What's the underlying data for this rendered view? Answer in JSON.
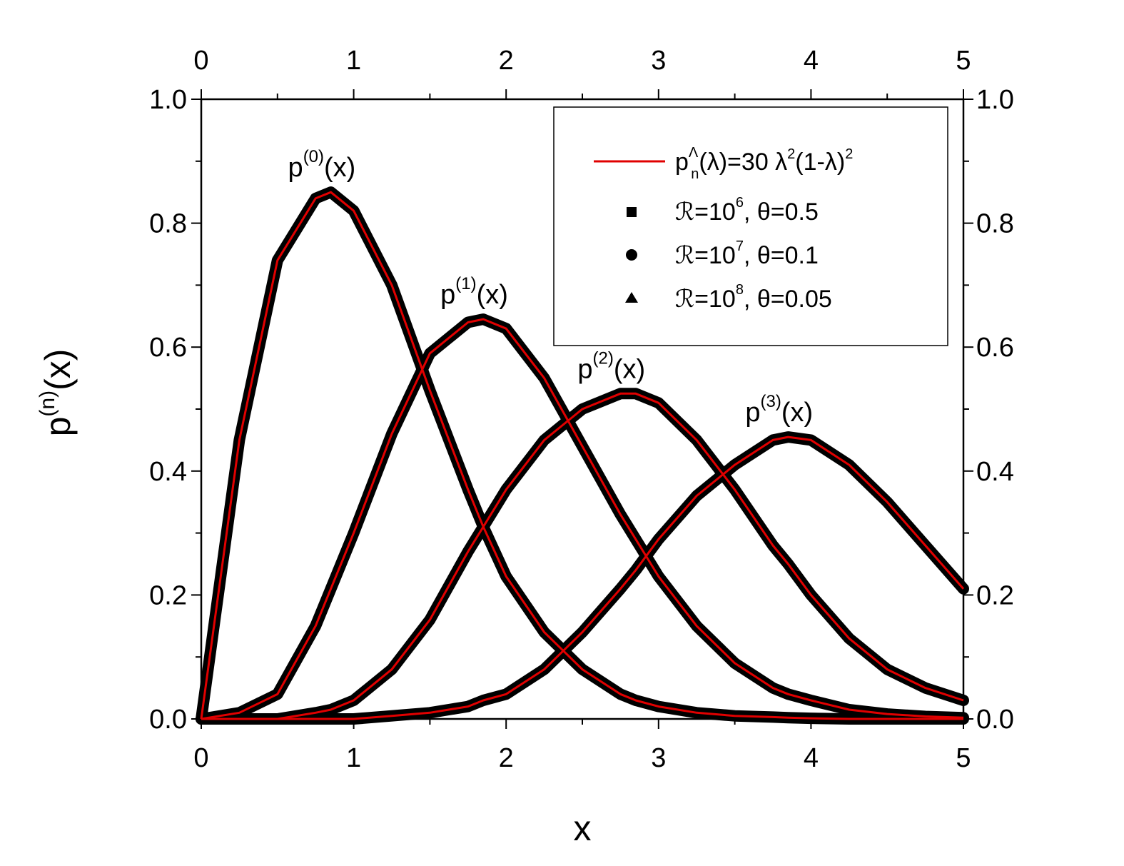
{
  "chart_data": {
    "type": "line",
    "xlabel": "x",
    "ylabel": "p(n)(x)",
    "ylabel_parts": {
      "base": "p",
      "sup": "(n)",
      "tail": "(x)"
    },
    "xlim": [
      0,
      5
    ],
    "ylim": [
      0,
      1.0
    ],
    "x_ticks": [
      "0",
      "1",
      "2",
      "3",
      "4",
      "5"
    ],
    "y_ticks": [
      "0.0",
      "0.2",
      "0.4",
      "0.6",
      "0.8",
      "1.0"
    ],
    "top_axis_mirrored": true,
    "right_axis_mirrored": true,
    "grid": false,
    "legend_position": "top-right",
    "legend": [
      {
        "kind": "line",
        "color": "#e00000",
        "base": "p",
        "sup": "Λ",
        "sub": "n",
        "mid": "(λ)=30 λ",
        "sup2": "2",
        "mid2": "(1-λ)",
        "sup3": "2"
      },
      {
        "kind": "square",
        "prefix": "ℛ=10",
        "sup": "6",
        "suffix": ", θ=0.5"
      },
      {
        "kind": "circle",
        "prefix": "ℛ=10",
        "sup": "7",
        "suffix": ", θ=0.1"
      },
      {
        "kind": "triangle",
        "prefix": "ℛ=10",
        "sup": "8",
        "suffix": ", θ=0.05"
      }
    ],
    "annotations": [
      {
        "base": "p",
        "sup": "(0)",
        "tail": "(x)"
      },
      {
        "base": "p",
        "sup": "(1)",
        "tail": "(x)"
      },
      {
        "base": "p",
        "sup": "(2)",
        "tail": "(x)"
      },
      {
        "base": "p",
        "sup": "(3)",
        "tail": "(x)"
      }
    ],
    "x": [
      0.0,
      0.25,
      0.5,
      0.75,
      0.85,
      1.0,
      1.25,
      1.5,
      1.75,
      1.85,
      2.0,
      2.25,
      2.5,
      2.75,
      2.85,
      3.0,
      3.25,
      3.5,
      3.75,
      3.85,
      4.0,
      4.25,
      4.5,
      4.75,
      5.0
    ],
    "series": [
      {
        "name": "p(0)(x)",
        "color": "#e00000",
        "values": [
          0.0,
          0.45,
          0.74,
          0.84,
          0.85,
          0.82,
          0.7,
          0.53,
          0.37,
          0.31,
          0.23,
          0.14,
          0.08,
          0.04,
          0.03,
          0.02,
          0.01,
          0.005,
          0.003,
          0.002,
          0.001,
          0.0,
          0.0,
          0.0,
          0.0
        ]
      },
      {
        "name": "p(1)(x)",
        "color": "#e00000",
        "values": [
          0.0,
          0.01,
          0.04,
          0.15,
          0.21,
          0.3,
          0.46,
          0.59,
          0.64,
          0.645,
          0.63,
          0.55,
          0.44,
          0.33,
          0.29,
          0.23,
          0.15,
          0.09,
          0.05,
          0.04,
          0.03,
          0.015,
          0.008,
          0.004,
          0.002
        ]
      },
      {
        "name": "p(2)(x)",
        "color": "#e00000",
        "values": [
          0.0,
          0.0,
          0.0,
          0.01,
          0.015,
          0.03,
          0.08,
          0.16,
          0.27,
          0.31,
          0.37,
          0.45,
          0.5,
          0.525,
          0.525,
          0.51,
          0.45,
          0.37,
          0.28,
          0.25,
          0.2,
          0.13,
          0.08,
          0.05,
          0.03
        ]
      },
      {
        "name": "p(3)(x)",
        "color": "#e00000",
        "values": [
          0.0,
          0.0,
          0.0,
          0.0,
          0.0,
          0.0,
          0.005,
          0.01,
          0.02,
          0.03,
          0.04,
          0.08,
          0.14,
          0.21,
          0.24,
          0.29,
          0.36,
          0.41,
          0.45,
          0.455,
          0.45,
          0.41,
          0.35,
          0.28,
          0.21
        ]
      }
    ]
  }
}
